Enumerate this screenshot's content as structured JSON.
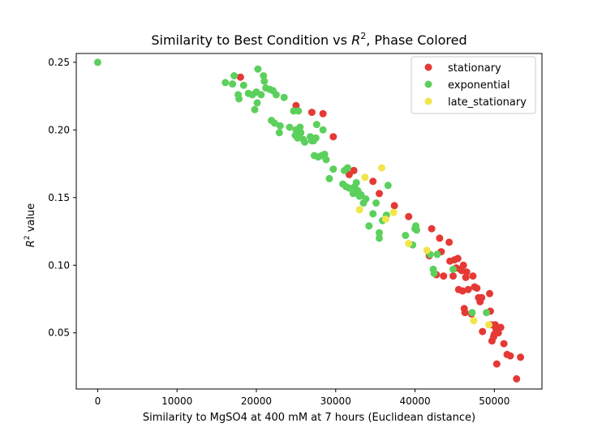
{
  "chart_data": {
    "type": "scatter",
    "title": "Similarity to Best Condition vs",
    "title_math": "R",
    "title_math_sup": "2",
    "title_tail": ", Phase Colored",
    "xlabel": "Similarity to MgSO4 at 400 mM at 7 hours (Euclidean distance)",
    "ylabel": "value",
    "ylabel_math": "R",
    "ylabel_math_sup": "2",
    "xlim": [
      -2700,
      56000
    ],
    "ylim": [
      0.0085,
      0.2565
    ],
    "xticks": [
      0,
      10000,
      20000,
      30000,
      40000,
      50000
    ],
    "xtick_labels": [
      "0",
      "10000",
      "20000",
      "30000",
      "40000",
      "50000"
    ],
    "yticks": [
      0.05,
      0.1,
      0.15,
      0.2,
      0.25
    ],
    "ytick_labels": [
      "0.05",
      "0.10",
      "0.15",
      "0.20",
      "0.25"
    ],
    "legend_position": "top-right",
    "series": [
      {
        "name": "stationary",
        "color": "#e53935",
        "points": [
          [
            18000,
            0.239
          ],
          [
            25000,
            0.218
          ],
          [
            27000,
            0.213
          ],
          [
            28400,
            0.212
          ],
          [
            29700,
            0.195
          ],
          [
            31700,
            0.167
          ],
          [
            32300,
            0.17
          ],
          [
            34700,
            0.162
          ],
          [
            35500,
            0.153
          ],
          [
            37400,
            0.144
          ],
          [
            39200,
            0.136
          ],
          [
            41800,
            0.107
          ],
          [
            42100,
            0.127
          ],
          [
            42700,
            0.093
          ],
          [
            43100,
            0.12
          ],
          [
            43300,
            0.11
          ],
          [
            43600,
            0.092
          ],
          [
            44300,
            0.117
          ],
          [
            44400,
            0.103
          ],
          [
            44800,
            0.092
          ],
          [
            45000,
            0.104
          ],
          [
            45200,
            0.098
          ],
          [
            45400,
            0.105
          ],
          [
            45500,
            0.082
          ],
          [
            45700,
            0.097
          ],
          [
            45900,
            0.096
          ],
          [
            46000,
            0.081
          ],
          [
            46100,
            0.1
          ],
          [
            46200,
            0.068
          ],
          [
            46300,
            0.065
          ],
          [
            46400,
            0.091
          ],
          [
            46500,
            0.095
          ],
          [
            46700,
            0.082
          ],
          [
            47100,
            0.064
          ],
          [
            47300,
            0.092
          ],
          [
            47500,
            0.084
          ],
          [
            47800,
            0.083
          ],
          [
            48000,
            0.076
          ],
          [
            48200,
            0.073
          ],
          [
            48400,
            0.076
          ],
          [
            48500,
            0.051
          ],
          [
            49400,
            0.079
          ],
          [
            49500,
            0.066
          ],
          [
            49600,
            0.056
          ],
          [
            49700,
            0.044
          ],
          [
            49900,
            0.047
          ],
          [
            50000,
            0.049
          ],
          [
            50100,
            0.056
          ],
          [
            50200,
            0.053
          ],
          [
            50300,
            0.027
          ],
          [
            50500,
            0.05
          ],
          [
            50800,
            0.054
          ],
          [
            51200,
            0.042
          ],
          [
            51600,
            0.034
          ],
          [
            52000,
            0.033
          ],
          [
            52800,
            0.016
          ],
          [
            53300,
            0.032
          ]
        ]
      },
      {
        "name": "exponential",
        "color": "#5cd05c",
        "points": [
          [
            0,
            0.25
          ],
          [
            16100,
            0.235
          ],
          [
            17000,
            0.234
          ],
          [
            17200,
            0.24
          ],
          [
            17700,
            0.226
          ],
          [
            17800,
            0.223
          ],
          [
            18400,
            0.233
          ],
          [
            19000,
            0.227
          ],
          [
            19500,
            0.226
          ],
          [
            19800,
            0.215
          ],
          [
            20000,
            0.228
          ],
          [
            20100,
            0.22
          ],
          [
            20200,
            0.245
          ],
          [
            20600,
            0.226
          ],
          [
            20900,
            0.24
          ],
          [
            21000,
            0.236
          ],
          [
            21200,
            0.231
          ],
          [
            21700,
            0.23
          ],
          [
            21900,
            0.207
          ],
          [
            22100,
            0.229
          ],
          [
            22300,
            0.205
          ],
          [
            22500,
            0.226
          ],
          [
            22900,
            0.198
          ],
          [
            23000,
            0.203
          ],
          [
            23500,
            0.224
          ],
          [
            24200,
            0.202
          ],
          [
            24700,
            0.214
          ],
          [
            24900,
            0.196
          ],
          [
            25000,
            0.2
          ],
          [
            25200,
            0.194
          ],
          [
            25300,
            0.214
          ],
          [
            25500,
            0.202
          ],
          [
            25600,
            0.198
          ],
          [
            25900,
            0.193
          ],
          [
            26100,
            0.191
          ],
          [
            26800,
            0.195
          ],
          [
            27000,
            0.192
          ],
          [
            27200,
            0.192
          ],
          [
            27300,
            0.181
          ],
          [
            27500,
            0.194
          ],
          [
            27600,
            0.204
          ],
          [
            27800,
            0.18
          ],
          [
            28200,
            0.181
          ],
          [
            28400,
            0.2
          ],
          [
            28600,
            0.182
          ],
          [
            28800,
            0.178
          ],
          [
            29200,
            0.164
          ],
          [
            29700,
            0.171
          ],
          [
            30900,
            0.16
          ],
          [
            31100,
            0.17
          ],
          [
            31300,
            0.158
          ],
          [
            31500,
            0.172
          ],
          [
            31700,
            0.157
          ],
          [
            32200,
            0.153
          ],
          [
            32400,
            0.158
          ],
          [
            32600,
            0.161
          ],
          [
            32800,
            0.155
          ],
          [
            33000,
            0.151
          ],
          [
            33200,
            0.152
          ],
          [
            33500,
            0.146
          ],
          [
            33800,
            0.149
          ],
          [
            34200,
            0.129
          ],
          [
            34700,
            0.138
          ],
          [
            35100,
            0.146
          ],
          [
            35500,
            0.124
          ],
          [
            35500,
            0.12
          ],
          [
            35900,
            0.133
          ],
          [
            36400,
            0.137
          ],
          [
            36600,
            0.159
          ],
          [
            38800,
            0.122
          ],
          [
            39700,
            0.115
          ],
          [
            40000,
            0.127
          ],
          [
            40100,
            0.129
          ],
          [
            40200,
            0.126
          ],
          [
            41900,
            0.108
          ],
          [
            42300,
            0.097
          ],
          [
            42400,
            0.094
          ],
          [
            42800,
            0.108
          ],
          [
            44800,
            0.097
          ],
          [
            47200,
            0.065
          ],
          [
            49000,
            0.065
          ]
        ]
      },
      {
        "name": "late_stationary",
        "color": "#f2e54a",
        "points": [
          [
            33000,
            0.141
          ],
          [
            33700,
            0.165
          ],
          [
            35800,
            0.172
          ],
          [
            36300,
            0.134
          ],
          [
            37300,
            0.139
          ],
          [
            39200,
            0.116
          ],
          [
            41500,
            0.111
          ],
          [
            47400,
            0.059
          ],
          [
            49300,
            0.056
          ]
        ]
      }
    ]
  }
}
